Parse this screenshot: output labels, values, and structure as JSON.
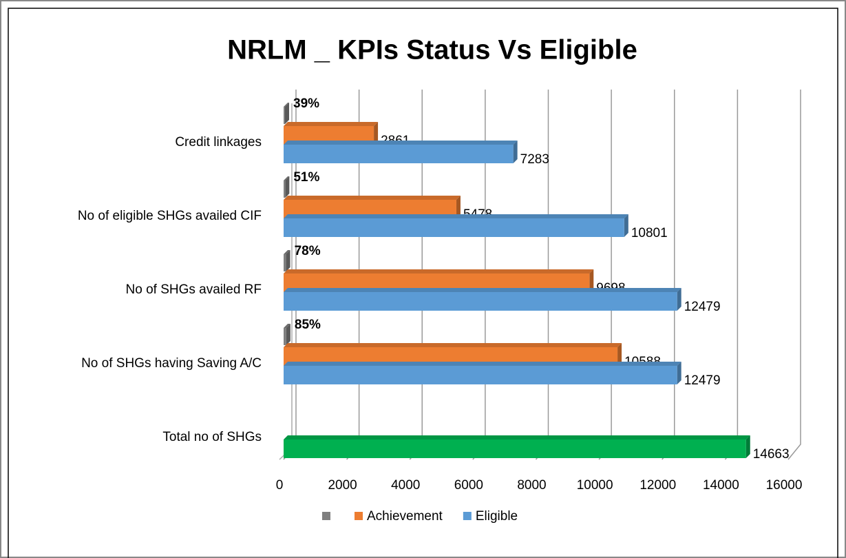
{
  "chart_data": {
    "type": "bar3d_horizontal",
    "title": "NRLM _  KPIs Status  Vs Eligible",
    "categories": [
      "Credit linkages",
      "No of eligible SHGs availed CIF",
      "No of SHGs availed RF",
      "No of SHGs having Saving A/C",
      "Total no of SHGs"
    ],
    "series": [
      {
        "color": "#7f7f7f",
        "values": [
          39,
          51,
          78,
          85,
          null
        ],
        "value_labels": [
          "39%",
          "51%",
          "78%",
          "85%",
          null
        ]
      },
      {
        "name": "Achievement",
        "color": "#ed7d31",
        "values": [
          2861,
          5478,
          9698,
          10588,
          null
        ]
      },
      {
        "name": "Eligible",
        "color": "#5b9bd5",
        "values": [
          7283,
          10801,
          12479,
          12479,
          14663
        ],
        "point_colors": [
          "#5b9bd5",
          "#5b9bd5",
          "#5b9bd5",
          "#5b9bd5",
          "#00b050"
        ]
      }
    ],
    "xlim": [
      0,
      16000
    ],
    "xticks": [
      0,
      2000,
      4000,
      6000,
      8000,
      10000,
      12000,
      14000,
      16000
    ],
    "grid": true,
    "legend": "bottom"
  }
}
